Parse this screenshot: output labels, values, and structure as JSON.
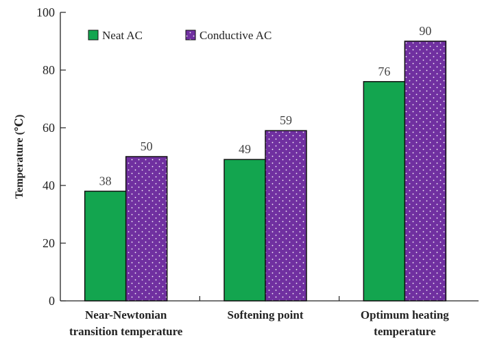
{
  "chart_data": {
    "type": "bar",
    "title": "",
    "xlabel": "",
    "ylabel": "Temperature (℃)",
    "ylim": [
      0,
      100
    ],
    "yticks": [
      "0",
      "20",
      "40",
      "60",
      "80",
      "100"
    ],
    "categories": [
      [
        "Near-Newtonian",
        "transition temperature"
      ],
      [
        "Softening point"
      ],
      [
        "Optimum heating",
        "temperature"
      ]
    ],
    "series": [
      {
        "name": "Neat AC",
        "values": [
          38,
          49,
          76
        ],
        "color": "#13a54f",
        "pattern": "solid"
      },
      {
        "name": "Conductive AC",
        "values": [
          50,
          59,
          90
        ],
        "color": "#7030a0",
        "pattern": "white-dots"
      }
    ],
    "legend": "top-left",
    "grid": false
  }
}
